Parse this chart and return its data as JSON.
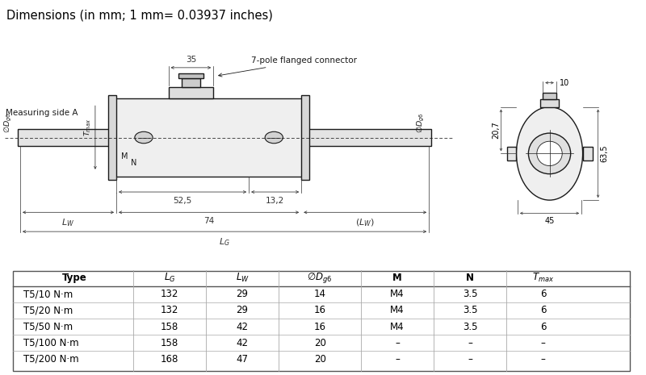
{
  "title": "Dimensions (in mm; 1 mm= 0.03937 inches)",
  "background_color": "#ffffff",
  "table": {
    "headers": [
      "Type",
      "LG",
      "LW",
      "Dg6",
      "M",
      "N",
      "Tmax"
    ],
    "rows": [
      [
        "T5/10 N·m",
        "132",
        "29",
        "14",
        "M4",
        "3.5",
        "6"
      ],
      [
        "T5/20 N·m",
        "132",
        "29",
        "16",
        "M4",
        "3.5",
        "6"
      ],
      [
        "T5/50 N·m",
        "158",
        "42",
        "16",
        "M4",
        "3.5",
        "6"
      ],
      [
        "T5/100 N·m",
        "158",
        "42",
        "20",
        "–",
        "–",
        "–"
      ],
      [
        "T5/200 N·m",
        "168",
        "47",
        "20",
        "–",
        "–",
        "–"
      ]
    ]
  }
}
